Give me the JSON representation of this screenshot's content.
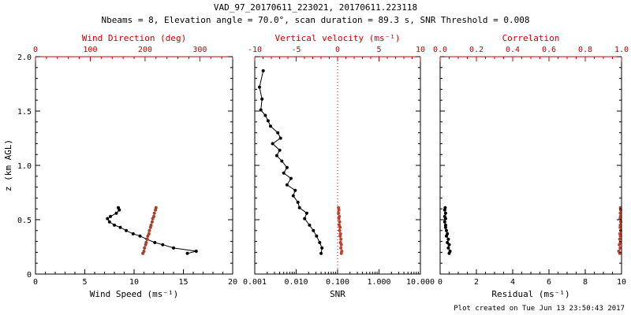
{
  "title": "VAD_97_20170611_223021, 20170611.223118",
  "subtitle": "Nbeams = 8, Elevation angle = 70.0°, scan duration = 89.3 s, SNR Threshold = 0.008",
  "footer": "Plot created on Tue Jun 13 23:50:43 2017",
  "colors": {
    "black": "#000000",
    "red": "#cc0000",
    "dark_red": "#a8402c",
    "series_red": "#c2402c"
  },
  "y_axis": {
    "label": "z (km AGL)",
    "lim": [
      0,
      2
    ],
    "ticks": [
      0,
      0.5,
      1.0,
      1.5,
      2.0
    ],
    "tick_labels": [
      "0",
      "0.5",
      "1.0",
      "1.5",
      "2.0"
    ],
    "minor_step": 0.1
  },
  "chart_data": [
    {
      "name": "wind-panel",
      "type": "line",
      "show_y_tick_labels": true,
      "x_bottom": {
        "label": "Wind Speed (ms⁻¹)",
        "lim": [
          0,
          20
        ],
        "scale": "linear",
        "ticks": [
          0,
          5,
          10,
          15,
          20
        ],
        "tick_labels": [
          "0",
          "5",
          "10",
          "15",
          "20"
        ],
        "minor_step": 1,
        "color": "black"
      },
      "x_top": {
        "label": "Wind Direction (deg)",
        "lim": [
          0,
          360
        ],
        "scale": "linear",
        "ticks": [
          0,
          100,
          200,
          300
        ],
        "tick_labels": [
          "0",
          "100",
          "200",
          "300"
        ],
        "minor_step": 20,
        "color": "red"
      },
      "series": [
        {
          "name": "wind-speed",
          "axis": "bottom",
          "color": "black",
          "z": [
            0.19,
            0.21,
            0.24,
            0.27,
            0.29,
            0.32,
            0.35,
            0.37,
            0.4,
            0.43,
            0.45,
            0.48,
            0.51,
            0.53,
            0.56,
            0.59,
            0.61
          ],
          "values": [
            15.4,
            16.3,
            14.0,
            12.9,
            12.1,
            11.3,
            10.6,
            9.9,
            9.2,
            8.6,
            8.0,
            7.5,
            7.3,
            7.6,
            8.2,
            8.5,
            8.4
          ]
        },
        {
          "name": "wind-direction",
          "axis": "top",
          "color": "dark_red",
          "z": [
            0.19,
            0.21,
            0.24,
            0.27,
            0.29,
            0.32,
            0.35,
            0.37,
            0.4,
            0.43,
            0.45,
            0.48,
            0.51,
            0.53,
            0.56,
            0.59,
            0.61
          ],
          "values": [
            196,
            198,
            199,
            201,
            202,
            204,
            205,
            207,
            208,
            210,
            211,
            213,
            214,
            216,
            217,
            219,
            220
          ]
        }
      ]
    },
    {
      "name": "snr-panel",
      "type": "line",
      "show_y_tick_labels": false,
      "x_bottom": {
        "label": "SNR",
        "lim": [
          0.001,
          10
        ],
        "scale": "log",
        "ticks": [
          0.001,
          0.01,
          0.1,
          1,
          10
        ],
        "tick_labels": [
          "0.001",
          "0.010",
          "0.100",
          "1.000",
          "10.000"
        ],
        "color": "black"
      },
      "x_top": {
        "label": "Vertical velocity (ms⁻¹)",
        "lim": [
          -10,
          10
        ],
        "scale": "linear",
        "ticks": [
          -10,
          -5,
          0,
          5,
          10
        ],
        "tick_labels": [
          "-10",
          "-5",
          "0",
          "5",
          "10"
        ],
        "minor_step": 1,
        "color": "red"
      },
      "refline": {
        "axis": "top",
        "value": 0,
        "color": "red",
        "style": "dotted"
      },
      "series": [
        {
          "name": "snr",
          "axis": "bottom",
          "color": "black",
          "z": [
            0.19,
            0.24,
            0.29,
            0.35,
            0.4,
            0.45,
            0.51,
            0.56,
            0.61,
            0.66,
            0.72,
            0.77,
            0.82,
            0.88,
            0.93,
            0.98,
            1.04,
            1.09,
            1.14,
            1.2,
            1.25,
            1.3,
            1.36,
            1.41,
            1.46,
            1.51,
            1.61,
            1.72,
            1.87
          ],
          "values": [
            0.04,
            0.042,
            0.037,
            0.031,
            0.026,
            0.021,
            0.016,
            0.018,
            0.012,
            0.011,
            0.0085,
            0.0095,
            0.006,
            0.0075,
            0.005,
            0.006,
            0.0045,
            0.0034,
            0.004,
            0.0027,
            0.0042,
            0.0036,
            0.0024,
            0.0021,
            0.0018,
            0.0014,
            0.0015,
            0.0013,
            0.0016
          ]
        },
        {
          "name": "vertical-velocity",
          "axis": "top",
          "color": "series_red",
          "z": [
            0.19,
            0.21,
            0.24,
            0.27,
            0.29,
            0.32,
            0.35,
            0.37,
            0.4,
            0.43,
            0.45,
            0.48,
            0.51,
            0.53,
            0.56,
            0.59,
            0.61
          ],
          "values": [
            0.45,
            0.5,
            0.4,
            0.45,
            0.35,
            0.4,
            0.3,
            0.35,
            0.25,
            0.3,
            0.2,
            0.25,
            0.15,
            0.2,
            0.1,
            0.15,
            0.1
          ]
        }
      ]
    },
    {
      "name": "residual-panel",
      "type": "line",
      "show_y_tick_labels": false,
      "x_bottom": {
        "label": "Residual (ms⁻¹)",
        "lim": [
          0,
          10
        ],
        "scale": "linear",
        "ticks": [
          0,
          2,
          4,
          6,
          8,
          10
        ],
        "tick_labels": [
          "0",
          "2",
          "4",
          "6",
          "8",
          "10"
        ],
        "minor_step": 0.5,
        "color": "black"
      },
      "x_top": {
        "label": "Correlation",
        "lim": [
          0,
          1
        ],
        "scale": "linear",
        "ticks": [
          0,
          0.2,
          0.4,
          0.6,
          0.8,
          1.0
        ],
        "tick_labels": [
          "0.0",
          "0.2",
          "0.4",
          "0.6",
          "0.8",
          "1.0"
        ],
        "minor_step": 0.05,
        "color": "red"
      },
      "series": [
        {
          "name": "residual",
          "axis": "bottom",
          "color": "black",
          "z": [
            0.19,
            0.21,
            0.24,
            0.27,
            0.29,
            0.32,
            0.35,
            0.37,
            0.4,
            0.43,
            0.45,
            0.48,
            0.51,
            0.53,
            0.56,
            0.59,
            0.61
          ],
          "values": [
            0.5,
            0.55,
            0.45,
            0.5,
            0.4,
            0.45,
            0.35,
            0.4,
            0.35,
            0.3,
            0.3,
            0.25,
            0.3,
            0.25,
            0.3,
            0.25,
            0.28
          ]
        },
        {
          "name": "correlation",
          "axis": "top",
          "color": "series_red",
          "z": [
            0.19,
            0.21,
            0.24,
            0.27,
            0.29,
            0.32,
            0.35,
            0.37,
            0.4,
            0.43,
            0.45,
            0.48,
            0.51,
            0.53,
            0.56,
            0.59,
            0.61
          ],
          "values": [
            0.99,
            0.985,
            0.992,
            0.988,
            0.993,
            0.99,
            0.994,
            0.991,
            0.995,
            0.992,
            0.993,
            0.995,
            0.992,
            0.994,
            0.993,
            0.995,
            0.994
          ]
        }
      ]
    }
  ]
}
